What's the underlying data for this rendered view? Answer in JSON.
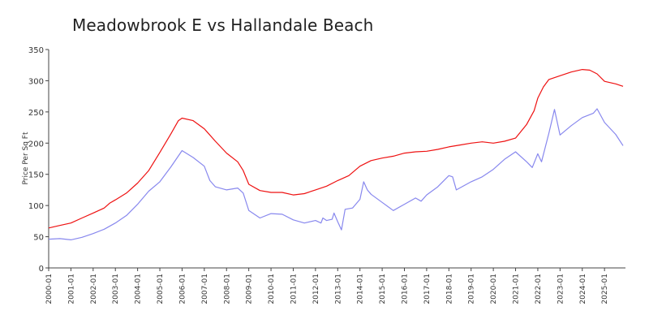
{
  "chart_data": {
    "type": "line",
    "title": "Meadowbrook E vs Hallandale Beach",
    "xlabel": "",
    "ylabel": "Price Per Sq Ft",
    "ylim": [
      0,
      350
    ],
    "yticks": [
      0,
      50,
      100,
      150,
      200,
      250,
      300,
      350
    ],
    "xlim": [
      "2000-01",
      "2025-11"
    ],
    "xticks": [
      "2000-01",
      "2001-01",
      "2002-01",
      "2003-01",
      "2004-01",
      "2005-01",
      "2006-01",
      "2007-01",
      "2008-01",
      "2009-01",
      "2010-01",
      "2011-01",
      "2012-01",
      "2013-01",
      "2014-01",
      "2015-01",
      "2016-01",
      "2017-01",
      "2018-01",
      "2019-01",
      "2020-01",
      "2021-01",
      "2022-01",
      "2023-01",
      "2024-01",
      "2025-01"
    ],
    "grid": false,
    "legend": "none",
    "series": [
      {
        "color": "#ee1111",
        "points": [
          [
            "2000-01",
            64
          ],
          [
            "2000-07",
            68
          ],
          [
            "2001-01",
            72
          ],
          [
            "2001-07",
            80
          ],
          [
            "2002-01",
            88
          ],
          [
            "2002-07",
            96
          ],
          [
            "2002-10",
            104
          ],
          [
            "2003-01",
            109
          ],
          [
            "2003-07",
            120
          ],
          [
            "2004-01",
            136
          ],
          [
            "2004-07",
            156
          ],
          [
            "2005-01",
            185
          ],
          [
            "2005-07",
            215
          ],
          [
            "2005-11",
            236
          ],
          [
            "2006-01",
            240
          ],
          [
            "2006-07",
            236
          ],
          [
            "2007-01",
            223
          ],
          [
            "2007-07",
            203
          ],
          [
            "2008-01",
            184
          ],
          [
            "2008-07",
            170
          ],
          [
            "2008-10",
            156
          ],
          [
            "2009-01",
            134
          ],
          [
            "2009-07",
            124
          ],
          [
            "2010-01",
            121
          ],
          [
            "2010-07",
            121
          ],
          [
            "2011-01",
            117
          ],
          [
            "2011-07",
            119
          ],
          [
            "2012-01",
            125
          ],
          [
            "2012-07",
            131
          ],
          [
            "2013-01",
            140
          ],
          [
            "2013-07",
            148
          ],
          [
            "2014-01",
            163
          ],
          [
            "2014-07",
            172
          ],
          [
            "2015-01",
            176
          ],
          [
            "2015-07",
            179
          ],
          [
            "2016-01",
            184
          ],
          [
            "2016-07",
            186
          ],
          [
            "2017-01",
            187
          ],
          [
            "2017-07",
            190
          ],
          [
            "2018-01",
            194
          ],
          [
            "2018-07",
            197
          ],
          [
            "2019-01",
            200
          ],
          [
            "2019-07",
            202
          ],
          [
            "2020-01",
            200
          ],
          [
            "2020-07",
            203
          ],
          [
            "2021-01",
            208
          ],
          [
            "2021-07",
            230
          ],
          [
            "2021-11",
            252
          ],
          [
            "2022-01",
            272
          ],
          [
            "2022-04",
            290
          ],
          [
            "2022-07",
            302
          ],
          [
            "2023-01",
            308
          ],
          [
            "2023-07",
            314
          ],
          [
            "2024-01",
            318
          ],
          [
            "2024-05",
            317
          ],
          [
            "2024-09",
            311
          ],
          [
            "2025-01",
            299
          ],
          [
            "2025-07",
            295
          ],
          [
            "2025-11",
            291
          ]
        ]
      },
      {
        "color": "#8888ee",
        "points": [
          [
            "2000-01",
            46
          ],
          [
            "2000-07",
            47
          ],
          [
            "2001-01",
            45
          ],
          [
            "2001-07",
            49
          ],
          [
            "2002-01",
            55
          ],
          [
            "2002-07",
            62
          ],
          [
            "2003-01",
            72
          ],
          [
            "2003-07",
            84
          ],
          [
            "2004-01",
            102
          ],
          [
            "2004-07",
            123
          ],
          [
            "2005-01",
            138
          ],
          [
            "2005-07",
            162
          ],
          [
            "2006-01",
            188
          ],
          [
            "2006-07",
            177
          ],
          [
            "2007-01",
            163
          ],
          [
            "2007-04",
            140
          ],
          [
            "2007-07",
            130
          ],
          [
            "2008-01",
            125
          ],
          [
            "2008-07",
            128
          ],
          [
            "2008-10",
            120
          ],
          [
            "2009-01",
            92
          ],
          [
            "2009-07",
            80
          ],
          [
            "2010-01",
            87
          ],
          [
            "2010-07",
            86
          ],
          [
            "2011-01",
            77
          ],
          [
            "2011-07",
            72
          ],
          [
            "2012-01",
            76
          ],
          [
            "2012-04",
            72
          ],
          [
            "2012-05",
            80
          ],
          [
            "2012-07",
            76
          ],
          [
            "2012-10",
            78
          ],
          [
            "2012-11",
            88
          ],
          [
            "2013-01",
            74
          ],
          [
            "2013-03",
            61
          ],
          [
            "2013-05",
            94
          ],
          [
            "2013-09",
            96
          ],
          [
            "2014-01",
            110
          ],
          [
            "2014-03",
            138
          ],
          [
            "2014-05",
            125
          ],
          [
            "2014-07",
            118
          ],
          [
            "2015-01",
            105
          ],
          [
            "2015-07",
            92
          ],
          [
            "2016-01",
            102
          ],
          [
            "2016-07",
            112
          ],
          [
            "2016-10",
            107
          ],
          [
            "2017-01",
            117
          ],
          [
            "2017-07",
            130
          ],
          [
            "2018-01",
            148
          ],
          [
            "2018-03",
            146
          ],
          [
            "2018-05",
            125
          ],
          [
            "2019-01",
            138
          ],
          [
            "2019-07",
            146
          ],
          [
            "2020-01",
            158
          ],
          [
            "2020-07",
            174
          ],
          [
            "2021-01",
            186
          ],
          [
            "2021-07",
            170
          ],
          [
            "2021-10",
            161
          ],
          [
            "2022-01",
            183
          ],
          [
            "2022-03",
            170
          ],
          [
            "2022-07",
            216
          ],
          [
            "2022-10",
            254
          ],
          [
            "2023-01",
            213
          ],
          [
            "2023-07",
            228
          ],
          [
            "2024-01",
            241
          ],
          [
            "2024-07",
            248
          ],
          [
            "2024-09",
            255
          ],
          [
            "2025-01",
            233
          ],
          [
            "2025-07",
            214
          ],
          [
            "2025-11",
            196
          ]
        ]
      }
    ]
  }
}
